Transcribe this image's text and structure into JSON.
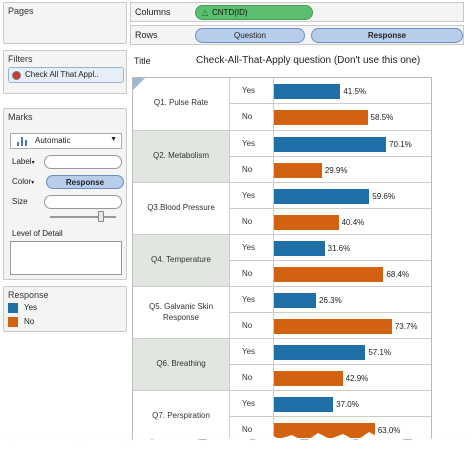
{
  "panels": {
    "pages_title": "Pages",
    "filters_title": "Filters",
    "filter_pill": "Check All That Appl..",
    "marks_title": "Marks",
    "mark_type": "Automatic",
    "label_text": "Label",
    "color_text": "Color",
    "color_pill": "Response",
    "size_text": "Size",
    "lod_text": "Level of Detail",
    "legend_title": "Response",
    "legend_items": [
      {
        "label": "Yes",
        "color": "#1f6fa8"
      },
      {
        "label": "No",
        "color": "#d2620f"
      }
    ]
  },
  "shelves": {
    "columns_label": "Columns",
    "columns_pill": "CNTD(ID)",
    "rows_label": "Rows",
    "rows_pills": [
      "Question",
      "Response"
    ]
  },
  "title": {
    "label": "Title",
    "text": "Check-All-That-Apply question (Don't use this one)"
  },
  "colors": {
    "yes": "#1f6fa8",
    "no": "#d2620f",
    "pill_blue": "#b7cdea",
    "pill_green": "#5cbf6f"
  },
  "chart_data": {
    "type": "bar",
    "categories": [
      "Q1. Pulse Rate",
      "Q2. Metabolism",
      "Q3.Blood Pressure",
      "Q4. Temperature",
      "Q5. Galvanic Skin Response",
      "Q6. Breathing",
      "Q7. Perspiration"
    ],
    "responses": [
      "Yes",
      "No"
    ],
    "series": [
      {
        "name": "Yes",
        "values": [
          41.5,
          70.1,
          59.6,
          31.6,
          26.3,
          57.1,
          37.0
        ],
        "labels": [
          "41.5%",
          "70.1%",
          "59.6%",
          "31.6%",
          "26.3%",
          "57.1%",
          "37.0%"
        ]
      },
      {
        "name": "No",
        "values": [
          58.5,
          29.9,
          40.4,
          68.4,
          73.7,
          42.9,
          63.0
        ],
        "labels": [
          "58.5%",
          "29.9%",
          "40.4%",
          "68.4%",
          "73.7%",
          "42.9%",
          "63.0%"
        ]
      }
    ],
    "xlim": [
      0,
      100
    ],
    "grid": false,
    "legend": "left-panel"
  }
}
